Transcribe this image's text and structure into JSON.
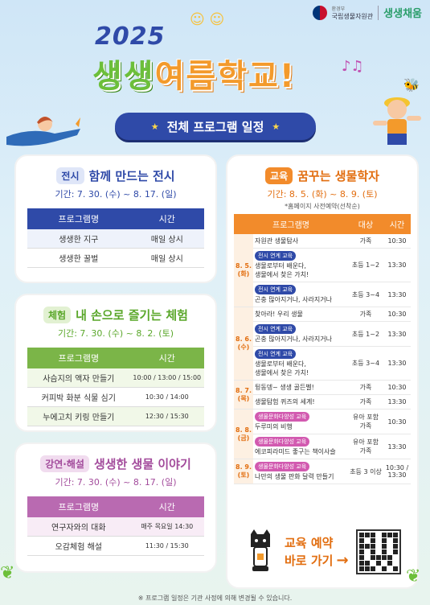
{
  "header": {
    "ministry": "환경부",
    "org_name": "국립생물자원관",
    "brand": "생생채움",
    "year": "2025",
    "title_green": "생생",
    "title_orange": "여름학교!"
  },
  "banner": {
    "label": "전체 프로그램 일정"
  },
  "exhibition": {
    "tag": "전시",
    "title": "함께 만드는 전시",
    "period": "기간: 7. 30. (수) ~ 8. 17. (일)",
    "headers": [
      "프로그램명",
      "시간"
    ],
    "rows": [
      [
        "생생한 지구",
        "매일 상시"
      ],
      [
        "생생한 꿀벌",
        "매일 상시"
      ]
    ]
  },
  "experience": {
    "tag": "체험",
    "title": "내 손으로 즐기는 체험",
    "period": "기간: 7. 30. (수) ~ 8. 2. (토)",
    "headers": [
      "프로그램명",
      "시간"
    ],
    "rows": [
      [
        "사슴지의 액자 만들기",
        "10:00 / 13:00 / 15:00"
      ],
      [
        "커피박 화분 식물 심기",
        "10:30 / 14:00"
      ],
      [
        "누에고치 키링 만들기",
        "12:30 / 15:30"
      ]
    ]
  },
  "lecture": {
    "tag": "강연·해설",
    "title": "생생한 생물 이야기",
    "period": "기간: 7. 30. (수) ~ 8. 17. (일)",
    "headers": [
      "프로그램명",
      "시간"
    ],
    "rows": [
      [
        "연구자와의 대화",
        "매주 목요일 14:30"
      ],
      [
        "오감체험 해설",
        "11:30 / 15:30"
      ]
    ]
  },
  "education": {
    "tag": "교육",
    "title": "꿈꾸는 생물학자",
    "period": "기간: 8. 5. (화) ~ 8. 9. (토)",
    "note": "*홈페이지 사전예약(선착순)",
    "headers": [
      "프로그램명",
      "대상",
      "시간"
    ],
    "days": [
      {
        "date": "8. 5. (화)",
        "rows": [
          {
            "tag": "",
            "lines": [
              "자원관 생물탐사"
            ],
            "target": "가족",
            "time": "10:30"
          },
          {
            "tag": "전시 연계 교육",
            "lines": [
              "생물로부터 배운다,",
              "생물에서 찾은 가치!"
            ],
            "target": "초등 1~2",
            "time": "13:30"
          },
          {
            "tag": "전시 연계 교육",
            "lines": [
              "곤충 많아지거나, 사라지거나"
            ],
            "target": "초등 3~4",
            "time": "13:30"
          }
        ]
      },
      {
        "date": "8. 6. (수)",
        "rows": [
          {
            "tag": "",
            "lines": [
              "찾아라! 우리 생물"
            ],
            "target": "가족",
            "time": "10:30"
          },
          {
            "tag": "전시 연계 교육",
            "lines": [
              "곤충 많아지거나, 사라지거나"
            ],
            "target": "초등 1~2",
            "time": "13:30"
          },
          {
            "tag": "전시 연계 교육",
            "lines": [
              "생물로부터 배운다,",
              "생물에서 찾은 가치!"
            ],
            "target": "초등 3~4",
            "time": "13:30"
          }
        ]
      },
      {
        "date": "8. 7. (목)",
        "rows": [
          {
            "tag": "",
            "lines": [
              "뒹동뎅~ 생생 골든벨!"
            ],
            "target": "가족",
            "time": "10:30"
          },
          {
            "tag": "",
            "lines": [
              "생물탐험 퀴즈의 세계!"
            ],
            "target": "가족",
            "time": "13:30"
          }
        ]
      },
      {
        "date": "8. 8. (금)",
        "rows": [
          {
            "tag": "생물문화다양성 교육",
            "lines": [
              "두루미의 비행"
            ],
            "target": "유아 포함 가족",
            "time": "10:30"
          },
          {
            "tag": "생물문화다양성 교육",
            "lines": [
              "에코피라미드 좋구는 책이사슬"
            ],
            "target": "유아 포함 가족",
            "time": "13:30"
          }
        ]
      },
      {
        "date": "8. 9. (토)",
        "rows": [
          {
            "tag": "생물문화다양성 교육",
            "lines": [
              "나만의 생물 판화 달력 만들기"
            ],
            "target": "초등 3 이상",
            "time": "10:30 / 13:30"
          }
        ]
      }
    ]
  },
  "cta": {
    "line1": "교육 예약",
    "line2": "바로 가기"
  },
  "footnote": "※ 프로그램 일정은 기관 사정에 의해 변경될 수 있습니다.",
  "colors": {
    "blue": "#2f4aa8",
    "green": "#7bb548",
    "purple": "#b96ab1",
    "orange": "#f28b2b"
  }
}
